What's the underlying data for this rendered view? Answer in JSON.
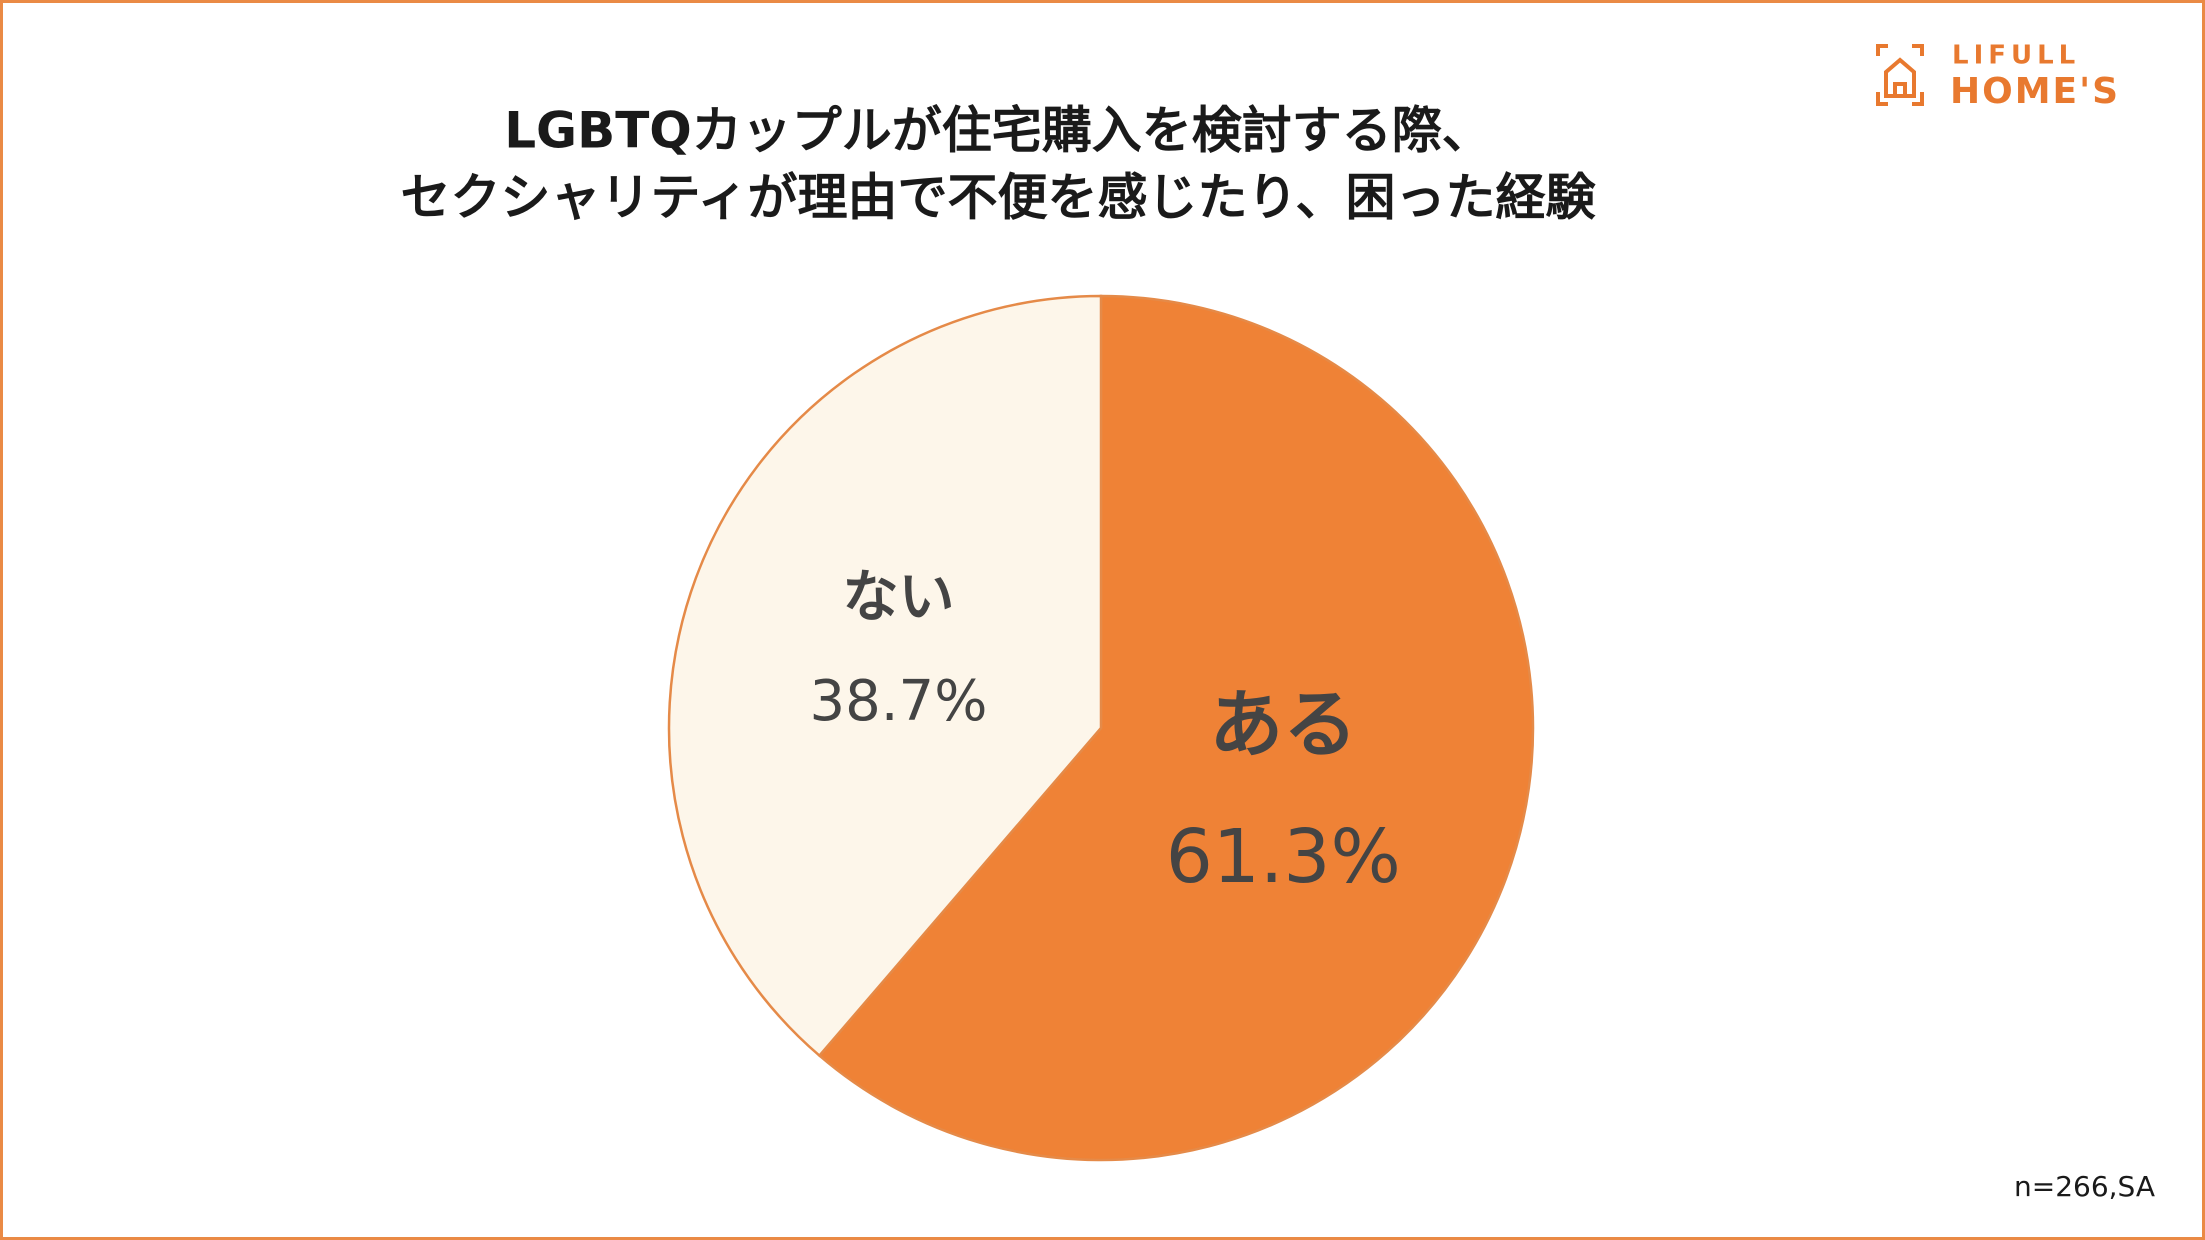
{
  "chart_data": {
    "type": "pie",
    "title": [
      "LGBTQカップルが住宅購入を検討する際、",
      "セクシャリティが理由で不便を感じたり、困った経験"
    ],
    "categories": [
      "ある",
      "ない"
    ],
    "values": [
      61.3,
      38.7
    ],
    "value_labels": [
      "61.3%",
      "38.7%"
    ],
    "colors": [
      "#ef8236",
      "#fdf6ea"
    ],
    "note": "n=266,SA"
  },
  "brand": {
    "top": "LIFULL",
    "bottom": "HOME'S"
  }
}
